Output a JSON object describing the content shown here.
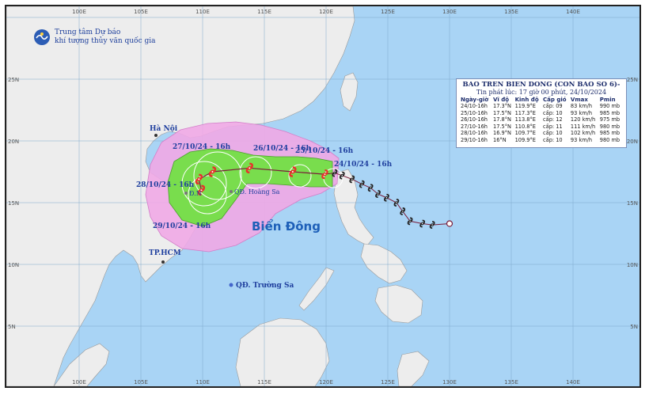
{
  "org": {
    "line1": "Trung tâm Dự báo",
    "line2": "khí tượng thủy văn quốc gia"
  },
  "grid": {
    "lon_labels": [
      "100E",
      "105E",
      "110E",
      "115E",
      "120E",
      "125E",
      "130E",
      "135E",
      "140E"
    ],
    "lat_labels": [
      "25N",
      "20N",
      "15N",
      "10N",
      "5N"
    ],
    "lat_labels_right": [
      "25N",
      "20N",
      "15N",
      "10N",
      "5N"
    ],
    "lon_labels_bottom": [
      "100E",
      "105E",
      "110E",
      "115E",
      "120E",
      "125E",
      "130E",
      "135E",
      "140E"
    ]
  },
  "places": {
    "hanoi": "Hà Nội",
    "hcm": "TP.HCM",
    "hoang_sa": "QĐ. Hoàng Sa",
    "truong_sa": "QĐ. Trường Sa",
    "da_nang": "Đ.N",
    "sea": "Biển Đông"
  },
  "track_labels": {
    "d24": "24/10/24 - 16h",
    "d25": "25/10/24 - 16h",
    "d26": "26/10/24 - 16h",
    "d27": "27/10/24 - 16h",
    "d28": "28/10/24 - 16h",
    "d29": "29/10/24 - 16h"
  },
  "bulletin": {
    "title": "BAO TREN BIEN DONG (CON BAO SO 6)-",
    "issued": "Tin phát lúc: 17 giờ 00 phút, 24/10/2024",
    "headers": [
      "Ngày-giờ",
      "Vĩ độ",
      "Kinh độ",
      "Cấp gió",
      "Vmax",
      "Pmin"
    ],
    "rows": [
      [
        "24/10-16h",
        "17.3°N",
        "119.9°E",
        "cấp: 09",
        "83 km/h",
        "990 mb"
      ],
      [
        "25/10-16h",
        "17.5°N",
        "117.3°E",
        "cấp: 10",
        "93 km/h",
        "985 mb"
      ],
      [
        "26/10-16h",
        "17.8°N",
        "113.8°E",
        "cấp: 12",
        "120 km/h",
        "975 mb"
      ],
      [
        "27/10-16h",
        "17.5°N",
        "110.8°E",
        "cấp: 11",
        "111 km/h",
        "980 mb"
      ],
      [
        "28/10-16h",
        "16.9°N",
        "109.7°E",
        "cấp: 10",
        "102 km/h",
        "985 mb"
      ],
      [
        "29/10-16h",
        "16°N",
        "109.9°E",
        "cấp: 10",
        "93 km/h",
        "980 mb"
      ]
    ]
  },
  "track": {
    "past": [
      {
        "lon": 130.0,
        "lat": 13.3
      },
      {
        "lon": 128.6,
        "lat": 13.2
      },
      {
        "lon": 127.8,
        "lat": 13.3
      },
      {
        "lon": 126.8,
        "lat": 13.5
      },
      {
        "lon": 126.2,
        "lat": 14.3
      },
      {
        "lon": 125.7,
        "lat": 15.0
      },
      {
        "lon": 124.9,
        "lat": 15.4
      },
      {
        "lon": 124.2,
        "lat": 15.7
      },
      {
        "lon": 123.6,
        "lat": 16.2
      },
      {
        "lon": 122.9,
        "lat": 16.5
      },
      {
        "lon": 122.1,
        "lat": 16.9
      },
      {
        "lon": 121.3,
        "lat": 17.2
      },
      {
        "lon": 120.7,
        "lat": 17.4
      }
    ],
    "forecast": [
      {
        "lon": 119.9,
        "lat": 17.3
      },
      {
        "lon": 117.3,
        "lat": 17.5
      },
      {
        "lon": 113.8,
        "lat": 17.8
      },
      {
        "lon": 110.8,
        "lat": 17.5
      },
      {
        "lon": 109.7,
        "lat": 16.9
      },
      {
        "lon": 109.9,
        "lat": 16.0
      }
    ]
  },
  "colors": {
    "sea": "#a9d4f5",
    "land": "#ededed",
    "risk_cone": "#f0a8e6",
    "strong_wind": "#79dd4d",
    "track": "#7a1d3a",
    "storm_symbol": "#e8302a",
    "past_symbol": "#222222"
  }
}
